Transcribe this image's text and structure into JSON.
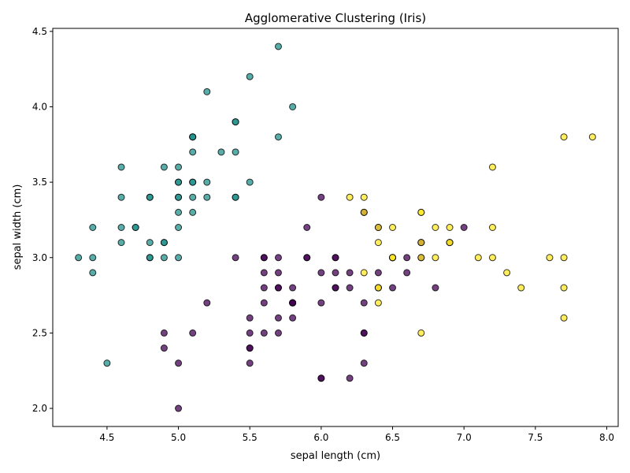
{
  "chart_data": {
    "type": "scatter",
    "title": "Agglomerative Clustering (Iris)",
    "xlabel": "sepal length (cm)",
    "ylabel": "sepal width (cm)",
    "xlim": [
      4.12,
      8.08
    ],
    "ylim": [
      1.88,
      4.52
    ],
    "xticks": [
      "4.5",
      "5.0",
      "5.5",
      "6.0",
      "6.5",
      "7.0",
      "7.5",
      "8.0"
    ],
    "yticks": [
      "2.0",
      "2.5",
      "3.0",
      "3.5",
      "4.0",
      "4.5"
    ],
    "grid": false,
    "legend": "none",
    "cluster_colors": [
      "#440154",
      "#21918c",
      "#fde725"
    ],
    "series": [
      {
        "cluster": 0,
        "color": "#440154",
        "points": [
          [
            7.0,
            3.2
          ],
          [
            6.9,
            3.1
          ],
          [
            5.5,
            2.3
          ],
          [
            6.5,
            2.8
          ],
          [
            5.7,
            2.8
          ],
          [
            6.3,
            3.3
          ],
          [
            4.9,
            2.4
          ],
          [
            6.6,
            2.9
          ],
          [
            5.2,
            2.7
          ],
          [
            5.0,
            2.0
          ],
          [
            5.9,
            3.0
          ],
          [
            6.0,
            2.2
          ],
          [
            6.1,
            2.9
          ],
          [
            5.6,
            2.9
          ],
          [
            6.7,
            3.1
          ],
          [
            5.6,
            3.0
          ],
          [
            5.8,
            2.7
          ],
          [
            6.2,
            2.2
          ],
          [
            5.6,
            2.5
          ],
          [
            5.9,
            3.2
          ],
          [
            6.1,
            2.8
          ],
          [
            6.3,
            2.5
          ],
          [
            6.1,
            2.8
          ],
          [
            6.4,
            2.9
          ],
          [
            6.6,
            3.0
          ],
          [
            6.8,
            2.8
          ],
          [
            6.0,
            2.9
          ],
          [
            5.7,
            2.6
          ],
          [
            5.5,
            2.4
          ],
          [
            5.5,
            2.4
          ],
          [
            5.8,
            2.7
          ],
          [
            6.0,
            2.7
          ],
          [
            5.4,
            3.0
          ],
          [
            6.0,
            3.4
          ],
          [
            6.7,
            3.1
          ],
          [
            6.3,
            2.3
          ],
          [
            5.6,
            3.0
          ],
          [
            5.5,
            2.5
          ],
          [
            5.5,
            2.6
          ],
          [
            6.1,
            3.0
          ],
          [
            5.8,
            2.6
          ],
          [
            5.0,
            2.3
          ],
          [
            5.6,
            2.7
          ],
          [
            5.7,
            3.0
          ],
          [
            5.7,
            2.9
          ],
          [
            6.2,
            2.9
          ],
          [
            5.1,
            2.5
          ],
          [
            5.7,
            2.8
          ],
          [
            5.8,
            2.7
          ],
          [
            4.9,
            2.5
          ],
          [
            6.0,
            2.2
          ],
          [
            5.6,
            2.8
          ],
          [
            6.3,
            2.7
          ],
          [
            6.2,
            2.8
          ],
          [
            6.1,
            3.0
          ],
          [
            6.3,
            2.5
          ],
          [
            5.8,
            2.8
          ],
          [
            5.9,
            3.0
          ],
          [
            6.5,
            3.0
          ],
          [
            6.4,
            3.2
          ],
          [
            6.3,
            3.3
          ],
          [
            5.8,
            2.7
          ],
          [
            6.4,
            2.8
          ],
          [
            5.7,
            2.5
          ],
          [
            6.7,
            3.0
          ]
        ]
      },
      {
        "cluster": 1,
        "color": "#21918c",
        "points": [
          [
            5.1,
            3.5
          ],
          [
            4.9,
            3.0
          ],
          [
            4.7,
            3.2
          ],
          [
            4.6,
            3.1
          ],
          [
            5.0,
            3.6
          ],
          [
            5.4,
            3.9
          ],
          [
            4.6,
            3.4
          ],
          [
            5.0,
            3.4
          ],
          [
            4.4,
            2.9
          ],
          [
            4.9,
            3.1
          ],
          [
            5.4,
            3.7
          ],
          [
            4.8,
            3.4
          ],
          [
            4.8,
            3.0
          ],
          [
            4.3,
            3.0
          ],
          [
            5.8,
            4.0
          ],
          [
            5.7,
            4.4
          ],
          [
            5.4,
            3.9
          ],
          [
            5.1,
            3.5
          ],
          [
            5.7,
            3.8
          ],
          [
            5.1,
            3.8
          ],
          [
            5.4,
            3.4
          ],
          [
            5.1,
            3.7
          ],
          [
            4.6,
            3.6
          ],
          [
            5.1,
            3.3
          ],
          [
            4.8,
            3.4
          ],
          [
            5.0,
            3.0
          ],
          [
            5.0,
            3.4
          ],
          [
            5.2,
            3.5
          ],
          [
            5.2,
            3.4
          ],
          [
            4.7,
            3.2
          ],
          [
            4.8,
            3.1
          ],
          [
            5.4,
            3.4
          ],
          [
            5.2,
            4.1
          ],
          [
            5.5,
            4.2
          ],
          [
            4.9,
            3.1
          ],
          [
            5.0,
            3.2
          ],
          [
            5.5,
            3.5
          ],
          [
            4.9,
            3.6
          ],
          [
            4.4,
            3.0
          ],
          [
            5.1,
            3.4
          ],
          [
            5.0,
            3.5
          ],
          [
            4.5,
            2.3
          ],
          [
            4.4,
            3.2
          ],
          [
            5.0,
            3.5
          ],
          [
            5.1,
            3.8
          ],
          [
            4.8,
            3.0
          ],
          [
            5.1,
            3.8
          ],
          [
            4.6,
            3.2
          ],
          [
            5.3,
            3.7
          ],
          [
            5.0,
            3.3
          ]
        ]
      },
      {
        "cluster": 2,
        "color": "#fde725",
        "points": [
          [
            6.3,
            3.3
          ],
          [
            7.1,
            3.0
          ],
          [
            6.3,
            2.9
          ],
          [
            6.5,
            3.0
          ],
          [
            7.6,
            3.0
          ],
          [
            7.3,
            2.9
          ],
          [
            6.7,
            2.5
          ],
          [
            7.2,
            3.6
          ],
          [
            6.5,
            3.2
          ],
          [
            6.4,
            2.7
          ],
          [
            6.8,
            3.0
          ],
          [
            6.4,
            3.2
          ],
          [
            6.5,
            3.0
          ],
          [
            7.7,
            3.8
          ],
          [
            7.7,
            2.6
          ],
          [
            6.9,
            3.2
          ],
          [
            7.7,
            2.8
          ],
          [
            6.7,
            3.3
          ],
          [
            7.2,
            3.2
          ],
          [
            6.2,
            3.4
          ],
          [
            6.4,
            2.8
          ],
          [
            7.2,
            3.0
          ],
          [
            7.4,
            2.8
          ],
          [
            7.9,
            3.8
          ],
          [
            6.4,
            2.8
          ],
          [
            6.3,
            3.4
          ],
          [
            6.4,
            3.1
          ],
          [
            6.9,
            3.1
          ],
          [
            6.7,
            3.1
          ],
          [
            6.9,
            3.1
          ],
          [
            6.8,
            3.2
          ],
          [
            6.7,
            3.3
          ],
          [
            6.7,
            3.0
          ],
          [
            6.5,
            3.0
          ],
          [
            7.7,
            3.0
          ]
        ]
      }
    ]
  }
}
